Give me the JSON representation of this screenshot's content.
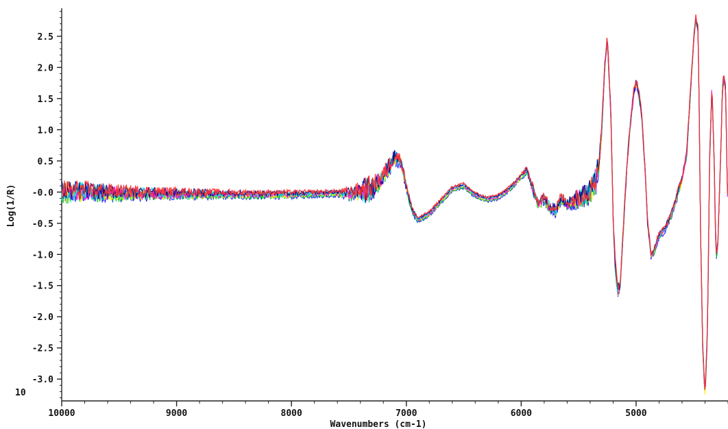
{
  "chart_data": {
    "type": "line",
    "title": "",
    "xlabel": "Wavenumbers (cm-1)",
    "ylabel": "Log(1/R)",
    "xlim": [
      10000,
      4200
    ],
    "ylim": [
      -3.35,
      2.95
    ],
    "x_reversed": true,
    "grid": false,
    "x_ticks": [
      {
        "value": 10000,
        "label": "10000"
      },
      {
        "value": 9000,
        "label": "9000"
      },
      {
        "value": 8000,
        "label": "8000"
      },
      {
        "value": 7000,
        "label": "7000"
      },
      {
        "value": 6000,
        "label": "6000"
      },
      {
        "value": 5000,
        "label": "5000"
      }
    ],
    "y_ticks": [
      {
        "value": 2.5,
        "label": "2.5"
      },
      {
        "value": 2.0,
        "label": "2.0"
      },
      {
        "value": 1.5,
        "label": "1.5"
      },
      {
        "value": 1.0,
        "label": "1.0"
      },
      {
        "value": 0.5,
        "label": "0.5"
      },
      {
        "value": 0.0,
        "label": "-0.0"
      },
      {
        "value": -0.5,
        "label": "-0.5"
      },
      {
        "value": -1.0,
        "label": "-1.0"
      },
      {
        "value": -1.5,
        "label": "-1.5"
      },
      {
        "value": -2.0,
        "label": "-2.0"
      },
      {
        "value": -2.5,
        "label": "-2.5"
      },
      {
        "value": -3.0,
        "label": "-3.0"
      }
    ],
    "corner_label": "10",
    "colors": [
      "#1a1aff",
      "#00cc33",
      "#ffee00",
      "#ff00ff",
      "#00dddd",
      "#000088",
      "#ff3333"
    ],
    "series_count": 7,
    "envelope": {
      "x": [
        10000,
        9800,
        9500,
        9000,
        8500,
        8000,
        7600,
        7500,
        7400,
        7300,
        7200,
        7150,
        7100,
        7050,
        7000,
        6950,
        6900,
        6800,
        6700,
        6600,
        6500,
        6400,
        6300,
        6200,
        6100,
        6000,
        5950,
        5900,
        5850,
        5800,
        5750,
        5700,
        5650,
        5600,
        5500,
        5450,
        5400,
        5350,
        5320,
        5300,
        5270,
        5250,
        5220,
        5200,
        5180,
        5160,
        5140,
        5120,
        5100,
        5080,
        5050,
        5020,
        5000,
        4980,
        4950,
        4920,
        4900,
        4870,
        4850,
        4820,
        4800,
        4750,
        4700,
        4650,
        4600,
        4560,
        4530,
        4500,
        4480,
        4460,
        4450,
        4440,
        4420,
        4400,
        4380,
        4370,
        4360,
        4340,
        4320,
        4310,
        4300,
        4290,
        4280,
        4260,
        4250,
        4240,
        4230,
        4220,
        4210,
        4200
      ],
      "y": [
        0,
        0,
        -0.02,
        -0.03,
        -0.04,
        -0.04,
        -0.02,
        -0.03,
        0,
        0.05,
        0.25,
        0.4,
        0.55,
        0.5,
        0.1,
        -0.3,
        -0.45,
        -0.35,
        -0.15,
        0.05,
        0.1,
        -0.05,
        -0.12,
        -0.08,
        0.05,
        0.25,
        0.35,
        0.05,
        -0.2,
        -0.1,
        -0.25,
        -0.3,
        -0.1,
        -0.2,
        -0.1,
        -0.05,
        0,
        0.2,
        0.5,
        1.0,
        2.1,
        2.45,
        1.3,
        -0.4,
        -1.2,
        -1.6,
        -1.5,
        -0.9,
        -0.2,
        0.4,
        1.1,
        1.6,
        1.75,
        1.65,
        1.2,
        0.3,
        -0.5,
        -1.0,
        -1.0,
        -0.8,
        -0.7,
        -0.6,
        -0.4,
        -0.1,
        0.2,
        0.6,
        1.5,
        2.4,
        2.8,
        2.6,
        1.2,
        -0.5,
        -2.5,
        -3.25,
        -2.3,
        -1.0,
        0.5,
        1.7,
        0.5,
        -0.6,
        -1.0,
        -0.9,
        -0.3,
        0.8,
        1.6,
        1.8,
        1.8,
        1.6,
        0.5,
        -0.4
      ]
    },
    "noise": {
      "x": [
        10000,
        9600,
        9000,
        8500,
        8000,
        7600,
        7400,
        7350,
        7300,
        7200,
        7100,
        7000,
        6900,
        6000,
        5950,
        5900,
        5800,
        5700,
        5600,
        5500,
        5400,
        5350,
        5300,
        5250,
        5200,
        5100,
        5000,
        4900,
        4800,
        4700,
        4600,
        4500,
        4400,
        4300,
        4200
      ],
      "amp": [
        0.17,
        0.12,
        0.07,
        0.05,
        0.04,
        0.03,
        0.14,
        0.22,
        0.16,
        0.14,
        0.12,
        0.06,
        0.02,
        0.02,
        0.05,
        0.06,
        0.07,
        0.09,
        0.08,
        0.15,
        0.18,
        0.22,
        0.08,
        0.06,
        0.1,
        0.07,
        0.05,
        0.05,
        0.04,
        0.04,
        0.05,
        0.04,
        0.06,
        0.06,
        0.06
      ]
    },
    "legend": []
  }
}
